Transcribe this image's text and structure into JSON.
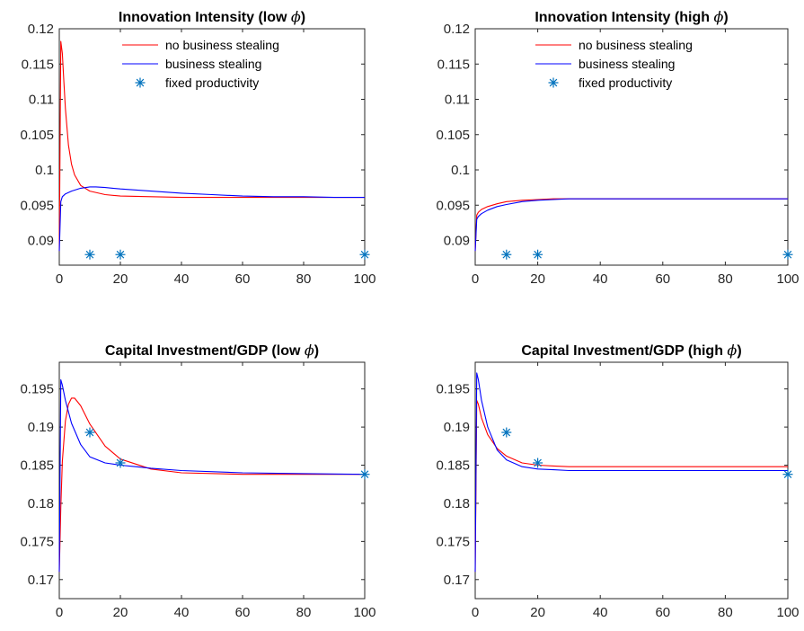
{
  "chart_data": [
    {
      "type": "line",
      "title": "Innovation Intensity (low ϕ)",
      "xlim": [
        0,
        100
      ],
      "ylim": [
        0.0865,
        0.12
      ],
      "xticks": [
        0,
        20,
        40,
        60,
        80,
        100
      ],
      "yticks": [
        0.09,
        0.095,
        0.1,
        0.105,
        0.11,
        0.115,
        0.12
      ],
      "ytick_labels": [
        "0.09",
        "0.095",
        "0.1",
        "0.105",
        "0.11",
        "0.115",
        "0.12"
      ],
      "legend": {
        "position": "top-right",
        "entries": [
          "no business stealing",
          "business stealing",
          "fixed productivity"
        ]
      },
      "series": [
        {
          "name": "no business stealing",
          "color": "#ff0000",
          "x": [
            0,
            0.5,
            1,
            1.5,
            2,
            3,
            4,
            5,
            7,
            10,
            15,
            20,
            30,
            40,
            50,
            60,
            70,
            80,
            90,
            100
          ],
          "y": [
            0.0885,
            0.1182,
            0.1165,
            0.1125,
            0.1087,
            0.1035,
            0.1008,
            0.0993,
            0.0978,
            0.097,
            0.0965,
            0.0963,
            0.0962,
            0.0961,
            0.0961,
            0.0961,
            0.0961,
            0.0961,
            0.0961,
            0.0961
          ]
        },
        {
          "name": "business stealing",
          "color": "#0000ff",
          "x": [
            0,
            0.5,
            1,
            2,
            4,
            7,
            10,
            12,
            15,
            20,
            30,
            40,
            50,
            60,
            70,
            80,
            90,
            100
          ],
          "y": [
            0.0885,
            0.0955,
            0.0962,
            0.0966,
            0.097,
            0.0974,
            0.0976,
            0.0976,
            0.0975,
            0.0973,
            0.097,
            0.0967,
            0.0965,
            0.0963,
            0.0962,
            0.0962,
            0.0961,
            0.0961
          ]
        },
        {
          "name": "fixed productivity",
          "color": "#0072bd",
          "marker": "*",
          "x": [
            10,
            20,
            100
          ],
          "y": [
            0.088,
            0.088,
            0.088
          ]
        }
      ]
    },
    {
      "type": "line",
      "title": "Innovation Intensity (high ϕ)",
      "xlim": [
        0,
        100
      ],
      "ylim": [
        0.0865,
        0.12
      ],
      "xticks": [
        0,
        20,
        40,
        60,
        80,
        100
      ],
      "yticks": [
        0.09,
        0.095,
        0.1,
        0.105,
        0.11,
        0.115,
        0.12
      ],
      "ytick_labels": [
        "0.09",
        "0.095",
        "0.1",
        "0.105",
        "0.11",
        "0.115",
        "0.12"
      ],
      "legend": {
        "position": "top-right",
        "entries": [
          "no business stealing",
          "business stealing",
          "fixed productivity"
        ]
      },
      "series": [
        {
          "name": "no business stealing",
          "color": "#ff0000",
          "x": [
            0,
            0.5,
            1,
            2,
            4,
            7,
            10,
            15,
            20,
            25,
            30,
            40,
            60,
            80,
            100
          ],
          "y": [
            0.0885,
            0.0936,
            0.094,
            0.0944,
            0.0948,
            0.0952,
            0.0955,
            0.0957,
            0.0958,
            0.0959,
            0.0959,
            0.0959,
            0.0959,
            0.0959,
            0.0959
          ]
        },
        {
          "name": "business stealing",
          "color": "#0000ff",
          "x": [
            0,
            0.5,
            1,
            2,
            4,
            7,
            10,
            15,
            20,
            25,
            30,
            40,
            60,
            80,
            100
          ],
          "y": [
            0.0885,
            0.093,
            0.0934,
            0.0938,
            0.0943,
            0.0948,
            0.0951,
            0.0955,
            0.0957,
            0.0958,
            0.0959,
            0.0959,
            0.0959,
            0.0959,
            0.0959
          ]
        },
        {
          "name": "fixed productivity",
          "color": "#0072bd",
          "marker": "*",
          "x": [
            10,
            20,
            100
          ],
          "y": [
            0.088,
            0.088,
            0.088
          ]
        }
      ]
    },
    {
      "type": "line",
      "title": "Capital Investment/GDP (low ϕ)",
      "xlim": [
        0,
        100
      ],
      "ylim": [
        0.1675,
        0.1985
      ],
      "xticks": [
        0,
        20,
        40,
        60,
        80,
        100
      ],
      "yticks": [
        0.17,
        0.175,
        0.18,
        0.185,
        0.19,
        0.195
      ],
      "ytick_labels": [
        "0.17",
        "0.175",
        "0.18",
        "0.185",
        "0.19",
        "0.195"
      ],
      "series": [
        {
          "name": "no business stealing",
          "color": "#ff0000",
          "x": [
            0,
            0.5,
            1,
            2,
            3,
            4,
            5,
            7,
            10,
            15,
            20,
            30,
            40,
            60,
            80,
            100
          ],
          "y": [
            0.171,
            0.1795,
            0.1855,
            0.1908,
            0.193,
            0.1938,
            0.1938,
            0.1928,
            0.1904,
            0.1875,
            0.1858,
            0.1845,
            0.184,
            0.1838,
            0.1838,
            0.1838
          ]
        },
        {
          "name": "business stealing",
          "color": "#0000ff",
          "x": [
            0,
            0.5,
            1,
            2,
            4,
            7,
            10,
            15,
            20,
            25,
            30,
            40,
            60,
            80,
            100
          ],
          "y": [
            0.171,
            0.1962,
            0.1955,
            0.1935,
            0.1905,
            0.1877,
            0.1861,
            0.1853,
            0.185,
            0.1848,
            0.1846,
            0.1843,
            0.184,
            0.1839,
            0.1838
          ]
        },
        {
          "name": "fixed productivity",
          "color": "#0072bd",
          "marker": "*",
          "x": [
            10,
            20,
            100
          ],
          "y": [
            0.1893,
            0.1853,
            0.1838
          ]
        }
      ]
    },
    {
      "type": "line",
      "title": "Capital Investment/GDP (high ϕ)",
      "xlim": [
        0,
        100
      ],
      "ylim": [
        0.1675,
        0.1985
      ],
      "xticks": [
        0,
        20,
        40,
        60,
        80,
        100
      ],
      "yticks": [
        0.17,
        0.175,
        0.18,
        0.185,
        0.19,
        0.195
      ],
      "ytick_labels": [
        "0.17",
        "0.175",
        "0.18",
        "0.185",
        "0.19",
        "0.195"
      ],
      "series": [
        {
          "name": "no business stealing",
          "color": "#ff0000",
          "x": [
            0,
            0.5,
            1,
            2,
            4,
            7,
            10,
            15,
            20,
            25,
            30,
            40,
            60,
            80,
            100
          ],
          "y": [
            0.171,
            0.1935,
            0.193,
            0.1912,
            0.189,
            0.1872,
            0.1862,
            0.1853,
            0.185,
            0.1849,
            0.1848,
            0.1848,
            0.1848,
            0.1848,
            0.1848
          ]
        },
        {
          "name": "business stealing",
          "color": "#0000ff",
          "x": [
            0,
            0.5,
            1,
            2,
            4,
            7,
            10,
            15,
            20,
            25,
            30,
            40,
            60,
            80,
            100
          ],
          "y": [
            0.171,
            0.1971,
            0.1962,
            0.1935,
            0.19,
            0.187,
            0.1857,
            0.1848,
            0.1845,
            0.1844,
            0.1843,
            0.1843,
            0.1843,
            0.1843,
            0.1843
          ]
        },
        {
          "name": "fixed productivity",
          "color": "#0072bd",
          "marker": "*",
          "x": [
            10,
            20,
            100
          ],
          "y": [
            0.1893,
            0.1853,
            0.1838
          ]
        }
      ]
    }
  ]
}
